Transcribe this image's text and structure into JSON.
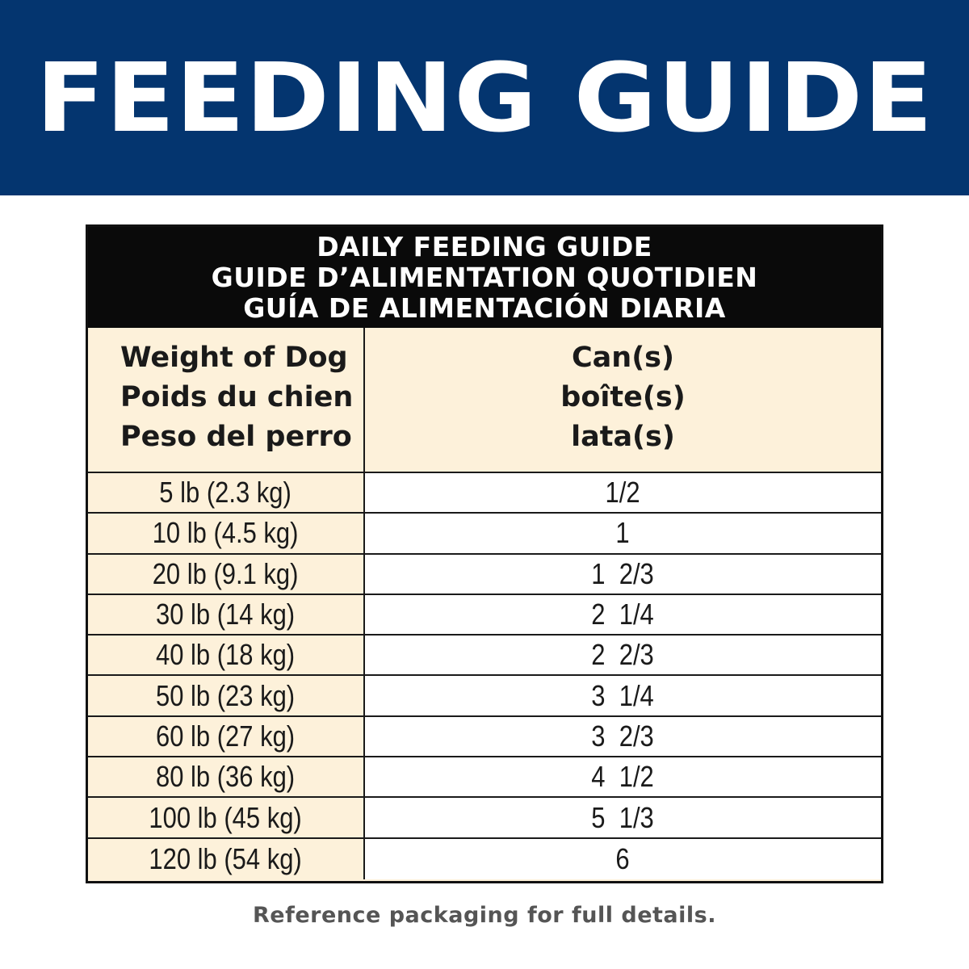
{
  "banner": {
    "title": "FEEDING GUIDE",
    "color": "#04356f"
  },
  "table": {
    "header_lines": [
      "DAILY FEEDING GUIDE",
      "GUIDE D’ALIMENTATION QUOTIDIEN",
      "GUÍA DE ALIMENTACIÓN DIARIA"
    ],
    "weight_header": [
      "Weight of Dog",
      "Poids du chien",
      "Peso del perro"
    ],
    "cans_header": [
      "Can(s)",
      "boîte(s)",
      "lata(s)"
    ],
    "rows": [
      {
        "weight": "5 lb (2.3 kg)",
        "cans": "1/2"
      },
      {
        "weight": "10 lb (4.5 kg)",
        "cans": "1"
      },
      {
        "weight": "20 lb (9.1 kg)",
        "cans": "1  2/3"
      },
      {
        "weight": "30 lb (14 kg)",
        "cans": "2  1/4"
      },
      {
        "weight": "40 lb (18 kg)",
        "cans": "2  2/3"
      },
      {
        "weight": "50 lb (23 kg)",
        "cans": "3  1/4"
      },
      {
        "weight": "60 lb (27 kg)",
        "cans": "3  2/3"
      },
      {
        "weight": "80 lb (36 kg)",
        "cans": "4  1/2"
      },
      {
        "weight": "100 lb (45 kg)",
        "cans": "5  1/3"
      },
      {
        "weight": "120 lb (54 kg)",
        "cans": "6"
      }
    ],
    "header_bg": "#0a0a0a",
    "label_bg": "#fdf1da"
  },
  "footnote": "Reference packaging for full details."
}
